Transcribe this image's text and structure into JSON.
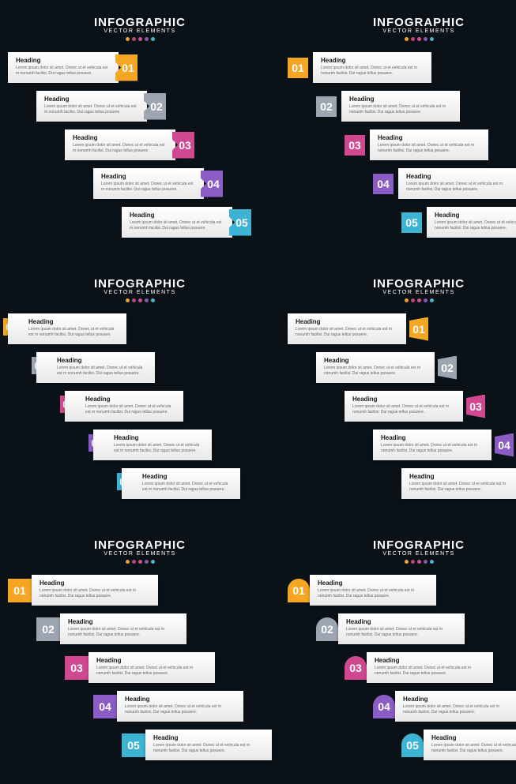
{
  "global": {
    "title": "INFOGRAPHIC",
    "subtitle": "VECTOR ELEMENTS",
    "background_color": "#0a1218",
    "dot_colors": [
      "#f0a030",
      "#b84878",
      "#d05090",
      "#8858b0",
      "#50b0c8"
    ],
    "step_colors": [
      "#f5a623",
      "#9da6b0",
      "#d04890",
      "#8a5cc4",
      "#3db4d4"
    ],
    "heading_label": "Heading",
    "body_text": "Lorem ipsum dolor sit amet. Donec ut et vehicula est m nonumh facilisi. Dui ragus tellus posuere.",
    "step_numbers": [
      "01",
      "02",
      "03",
      "04",
      "05"
    ],
    "card_bg": "#ffffff",
    "card_bg_grad": "#e8e8e8",
    "heading_color": "#1a1a1a",
    "body_color": "#666666",
    "title_fontsize": 15,
    "subtitle_fontsize": 7,
    "heading_fontsize": 8,
    "body_fontsize": 5,
    "number_fontsize": 14
  },
  "panels": [
    {
      "variant": "v1",
      "badge_side": "right",
      "stair_indent": 36
    },
    {
      "variant": "v2",
      "badge_side": "left",
      "stair_indent": 36
    },
    {
      "variant": "v3",
      "badge_side": "left",
      "stair_indent": 36
    },
    {
      "variant": "v4",
      "badge_side": "right",
      "stair_indent": 36
    },
    {
      "variant": "v5",
      "badge_side": "left",
      "stair_indent": 36
    },
    {
      "variant": "v6",
      "badge_side": "left",
      "stair_indent": 36
    }
  ]
}
